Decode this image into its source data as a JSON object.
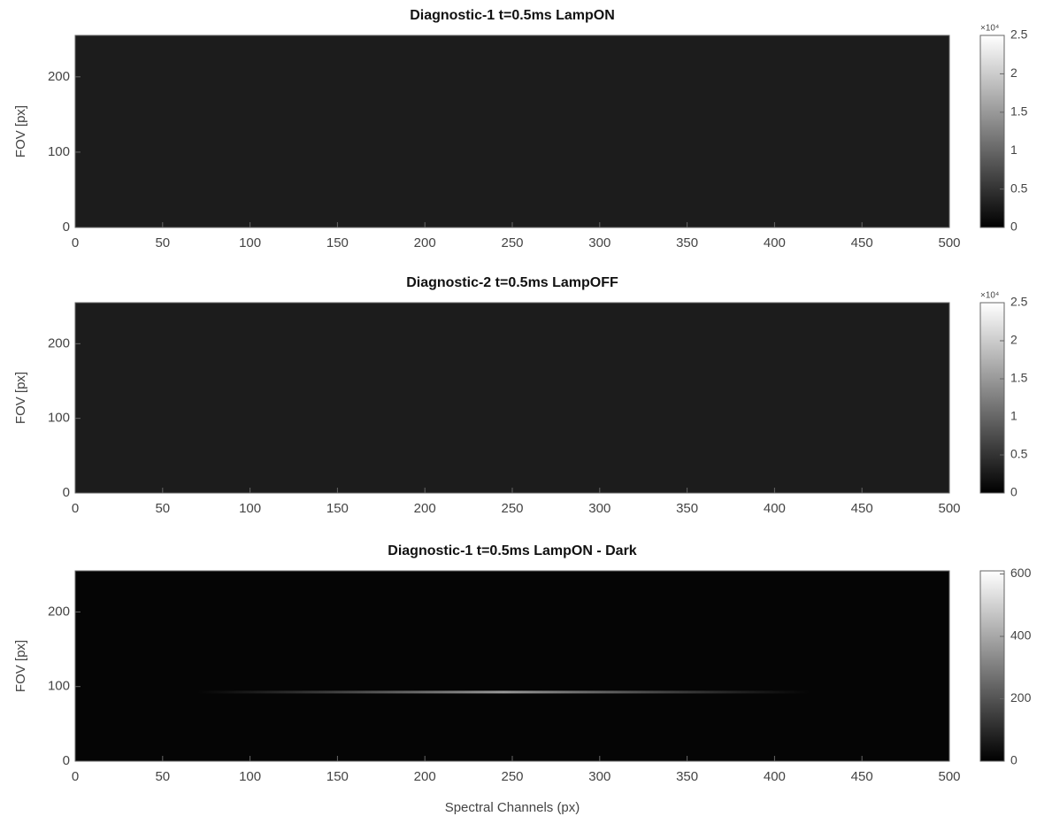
{
  "chart_data": [
    {
      "type": "heatmap",
      "title": "Diagnostic-1 t=0.5ms LampON",
      "y_label": "FOV [px]",
      "colormap": "gray",
      "xlim": [
        0,
        500
      ],
      "xticks": [
        0,
        50,
        100,
        150,
        200,
        250,
        300,
        350,
        400,
        450,
        500
      ],
      "ylim": [
        0,
        255
      ],
      "yticks": [
        0,
        100,
        200
      ],
      "clim": [
        0,
        25000
      ],
      "cticks": [
        {
          "value": 0,
          "label": "0"
        },
        {
          "value": 5000,
          "label": "0.5"
        },
        {
          "value": 10000,
          "label": "1"
        },
        {
          "value": 15000,
          "label": "1.5"
        },
        {
          "value": 20000,
          "label": "2"
        },
        {
          "value": 25000,
          "label": "2.5"
        }
      ],
      "c_exponent": "×10⁴"
    },
    {
      "type": "heatmap",
      "title": "Diagnostic-2 t=0.5ms LampOFF",
      "y_label": "FOV [px]",
      "colormap": "gray",
      "xlim": [
        0,
        500
      ],
      "xticks": [
        0,
        50,
        100,
        150,
        200,
        250,
        300,
        350,
        400,
        450,
        500
      ],
      "ylim": [
        0,
        255
      ],
      "yticks": [
        0,
        100,
        200
      ],
      "clim": [
        0,
        25000
      ],
      "cticks": [
        {
          "value": 0,
          "label": "0"
        },
        {
          "value": 5000,
          "label": "0.5"
        },
        {
          "value": 10000,
          "label": "1"
        },
        {
          "value": 15000,
          "label": "1.5"
        },
        {
          "value": 20000,
          "label": "2"
        },
        {
          "value": 25000,
          "label": "2.5"
        }
      ],
      "c_exponent": "×10⁴"
    },
    {
      "type": "heatmap",
      "title": "Diagnostic-1 t=0.5ms LampON - Dark",
      "y_label": "FOV [px]",
      "x_label": "Spectral Channels (px)",
      "colormap": "gray",
      "xlim": [
        0,
        500
      ],
      "xticks": [
        0,
        50,
        100,
        150,
        200,
        250,
        300,
        350,
        400,
        450,
        500
      ],
      "ylim": [
        0,
        255
      ],
      "yticks": [
        0,
        100,
        200
      ],
      "clim": [
        0,
        610
      ],
      "cticks": [
        0,
        200,
        400,
        600
      ]
    }
  ]
}
